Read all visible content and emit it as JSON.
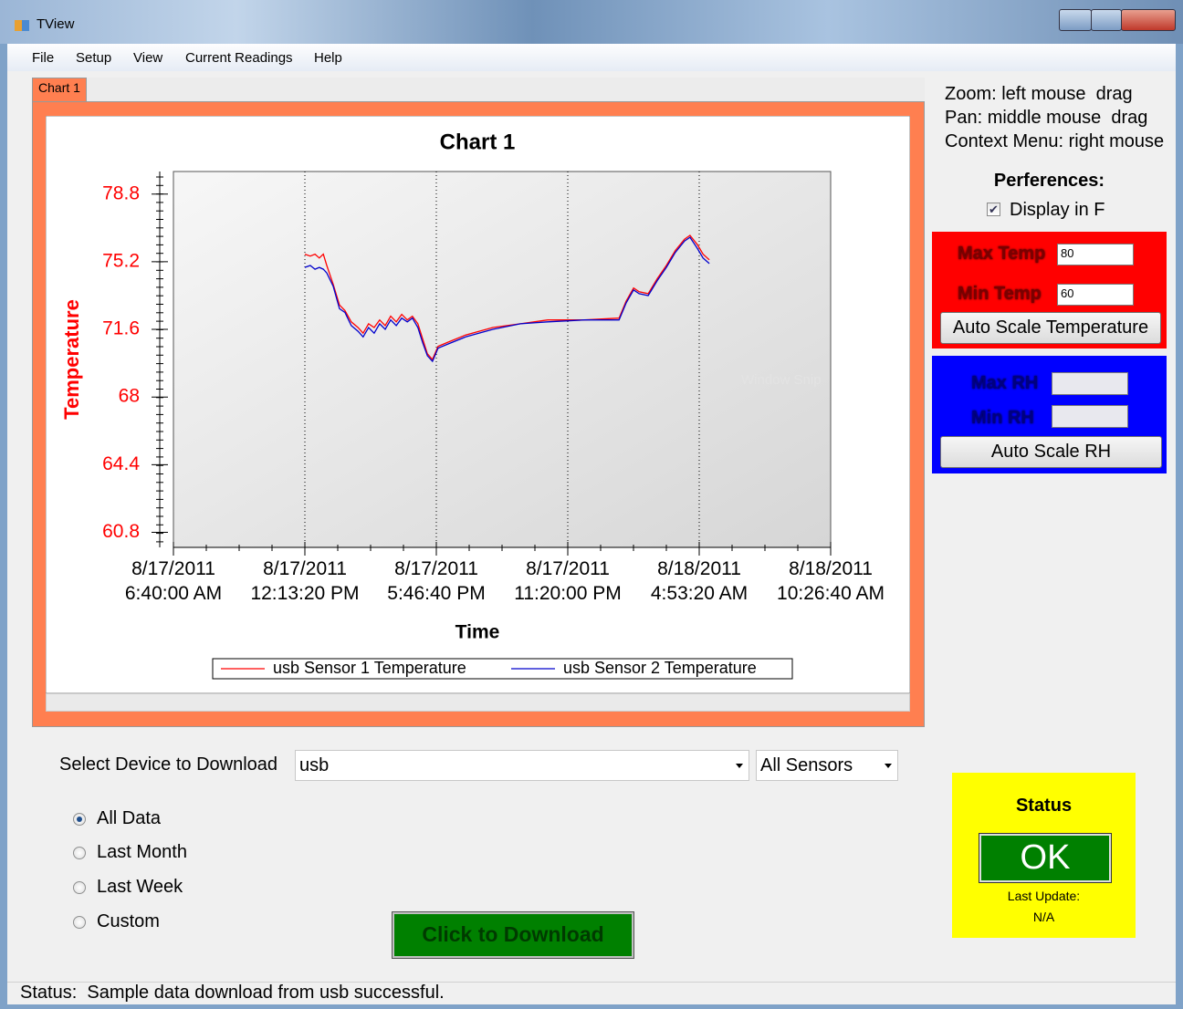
{
  "window": {
    "title": "TView"
  },
  "menu": [
    "File",
    "Setup",
    "View",
    "Current Readings",
    "Help"
  ],
  "tab": "Chart 1",
  "help": [
    "Zoom: left mouse  drag",
    "Pan: middle mouse  drag",
    "Context Menu: right mouse"
  ],
  "preferences": {
    "title": "Perferences:",
    "display_in_f": "Display in F",
    "display_in_f_checked": true
  },
  "temperature_scale": {
    "max_label": "Max Temp",
    "max_value": "80",
    "min_label": "Min Temp",
    "min_value": "60",
    "button": "Auto Scale Temperature"
  },
  "rh_scale": {
    "max_label": "Max RH",
    "min_label": "Min RH",
    "button": "Auto Scale RH"
  },
  "overlay_text": "Window Snip",
  "download": {
    "label": "Select Device to Download",
    "device": "usb",
    "sensors": "All Sensors",
    "ranges": [
      "All Data",
      "Last Month",
      "Last Week",
      "Custom"
    ],
    "selected": 0,
    "button": "Click to Download"
  },
  "status_panel": {
    "title": "Status",
    "state": "OK",
    "last_update_label": "Last Update:",
    "last_update": "N/A"
  },
  "status_bar": "Status:  Sample data download from usb successful.",
  "chart_data": {
    "type": "line",
    "title": "Chart 1",
    "x_label": "Time",
    "y_label": "Temperature",
    "x": [
      "2011-08-17T12:13:00",
      "2011-08-17T12:27:00",
      "2011-08-17T12:39:00",
      "2011-08-17T12:50:00",
      "2011-08-17T13:00:00",
      "2011-08-17T13:09:00",
      "2011-08-17T13:25:00",
      "2011-08-17T13:41:00",
      "2011-08-17T13:55:00",
      "2011-08-17T14:11:00",
      "2011-08-17T14:28:00",
      "2011-08-17T14:41:00",
      "2011-08-17T14:55:00",
      "2011-08-17T15:09:00",
      "2011-08-17T15:23:00",
      "2011-08-17T15:37:00",
      "2011-08-17T15:51:00",
      "2011-08-17T16:05:00",
      "2011-08-17T16:19:00",
      "2011-08-17T16:33:00",
      "2011-08-17T16:46:00",
      "2011-08-17T17:00:00",
      "2011-08-17T17:12:00",
      "2011-08-17T17:24:00",
      "2011-08-17T17:37:00",
      "2011-08-17T17:51:00",
      "2011-08-17T18:14:00",
      "2011-08-17T19:01:00",
      "2011-08-17T20:10:00",
      "2011-08-17T21:20:00",
      "2011-08-17T22:29:00",
      "2011-08-18T00:02:00",
      "2011-08-18T01:30:00",
      "2011-08-18T01:48:00",
      "2011-08-18T02:07:00",
      "2011-08-18T02:21:00",
      "2011-08-18T02:44:00",
      "2011-08-18T03:07:00",
      "2011-08-18T03:30:00",
      "2011-08-18T03:53:00",
      "2011-08-18T04:16:00",
      "2011-08-18T04:30:00",
      "2011-08-18T04:49:00",
      "2011-08-18T05:03:00",
      "2011-08-18T05:19:00"
    ],
    "series": [
      {
        "name": "usb Sensor 1 Temperature",
        "color": "#ff0000",
        "values": [
          75.6,
          75.5,
          75.6,
          75.4,
          75.6,
          75.0,
          74.0,
          72.9,
          72.6,
          72.0,
          71.7,
          71.4,
          71.9,
          71.7,
          72.1,
          71.8,
          72.3,
          72.0,
          72.4,
          72.1,
          72.3,
          71.9,
          71.1,
          70.3,
          70.0,
          70.7,
          70.9,
          71.3,
          71.7,
          71.9,
          72.1,
          72.1,
          72.2,
          73.1,
          73.8,
          73.6,
          73.5,
          74.3,
          75.0,
          75.8,
          76.4,
          76.6,
          76.1,
          75.6,
          75.3
        ]
      },
      {
        "name": "usb Sensor 2 Temperature",
        "color": "#0000cc",
        "values": [
          74.9,
          75.0,
          74.8,
          74.9,
          74.8,
          74.6,
          73.9,
          72.7,
          72.5,
          71.8,
          71.5,
          71.2,
          71.7,
          71.4,
          71.9,
          71.6,
          72.1,
          71.8,
          72.2,
          72.0,
          72.2,
          71.7,
          70.9,
          70.2,
          69.9,
          70.6,
          70.8,
          71.2,
          71.6,
          71.9,
          72.0,
          72.1,
          72.1,
          73.0,
          73.7,
          73.5,
          73.4,
          74.2,
          74.9,
          75.7,
          76.3,
          76.5,
          75.9,
          75.4,
          75.1
        ]
      }
    ],
    "xlim": [
      "2011-08-17T06:40:00",
      "2011-08-18T10:26:40"
    ],
    "xticks": [
      {
        "value": "2011-08-17T06:40:00",
        "label": "8/17/2011 6:40:00 AM"
      },
      {
        "value": "2011-08-17T12:13:20",
        "label": "8/17/2011 12:13:20 PM"
      },
      {
        "value": "2011-08-17T17:46:40",
        "label": "8/17/2011 5:46:40 PM"
      },
      {
        "value": "2011-08-17T23:20:00",
        "label": "8/17/2011 11:20:00 PM"
      },
      {
        "value": "2011-08-18T04:53:20",
        "label": "8/18/2011 4:53:20 AM"
      },
      {
        "value": "2011-08-18T10:26:40",
        "label": "8/18/2011 10:26:40 AM"
      }
    ],
    "ylim": [
      60,
      80
    ],
    "yticks": [
      60.8,
      64.4,
      68,
      71.6,
      75.2,
      78.8
    ],
    "grid": "x",
    "legend": "bottom"
  }
}
